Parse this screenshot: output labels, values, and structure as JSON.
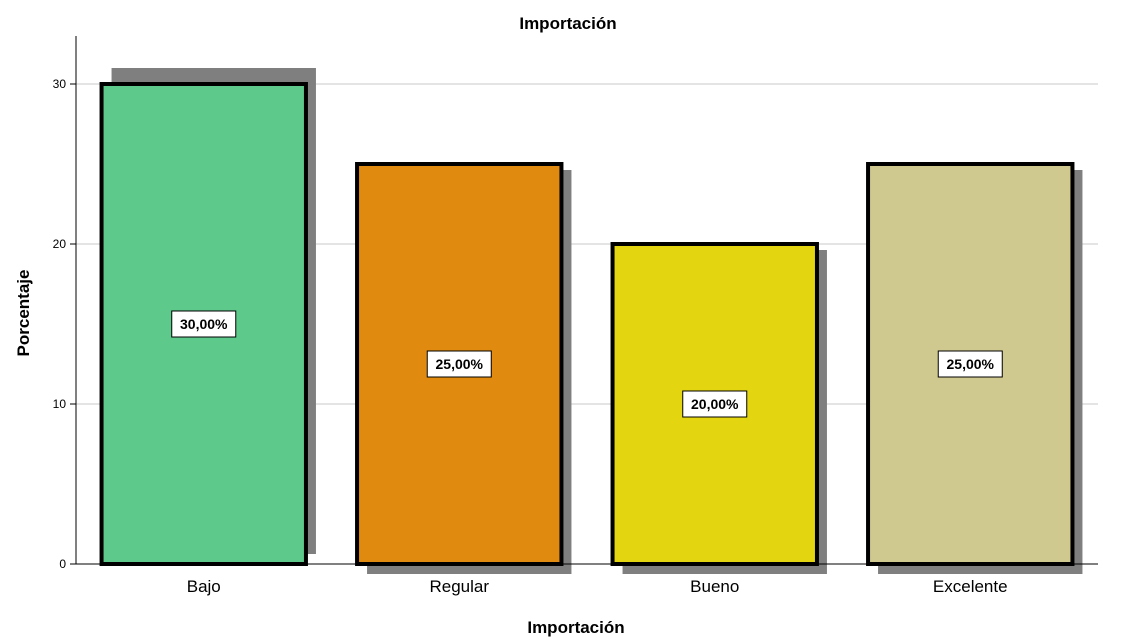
{
  "chart_data": {
    "type": "bar",
    "title": "Importación",
    "xlabel": "Importación",
    "ylabel": "Porcentaje",
    "categories": [
      "Bajo",
      "Regular",
      "Bueno",
      "Excelente"
    ],
    "values": [
      30,
      25,
      20,
      25
    ],
    "data_labels": [
      "30,00%",
      "25,00%",
      "20,00%",
      "25,00%"
    ],
    "colors": [
      "#5DC98A",
      "#E08A10",
      "#E3D610",
      "#D0C98F"
    ],
    "ylim": [
      0,
      33
    ],
    "yticks": [
      0,
      10,
      20,
      30
    ],
    "ytick_labels": [
      "0",
      "10",
      "20",
      "30"
    ],
    "grid": "horizontal"
  }
}
